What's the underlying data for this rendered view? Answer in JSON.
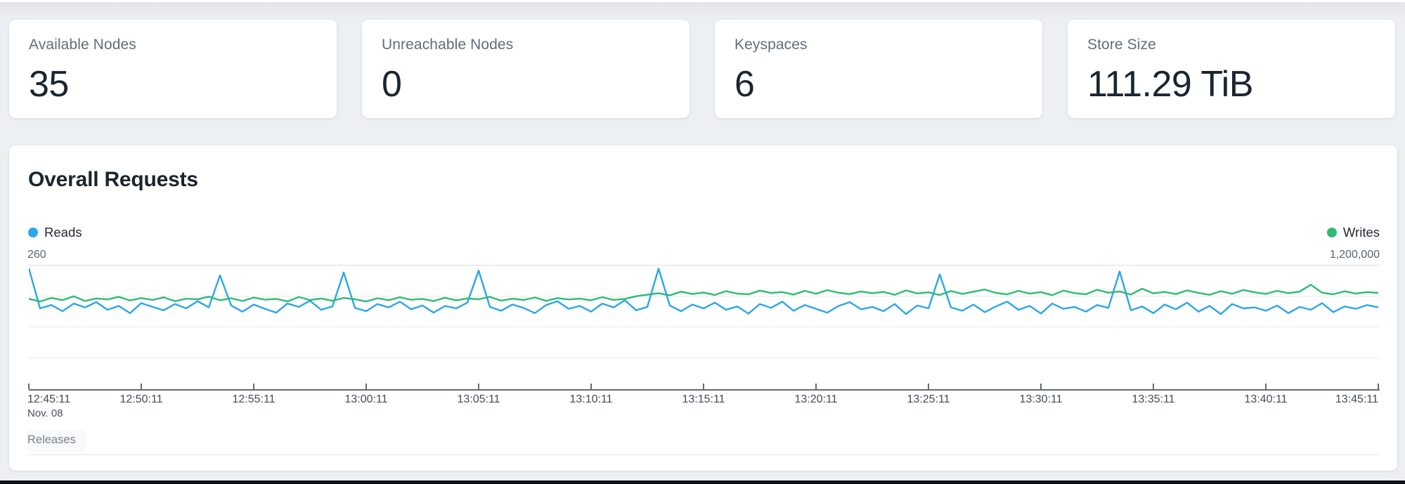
{
  "cards": [
    {
      "label": "Available Nodes",
      "value": "35"
    },
    {
      "label": "Unreachable Nodes",
      "value": "0"
    },
    {
      "label": "Keyspaces",
      "value": "6"
    },
    {
      "label": "Store Size",
      "value": "111.29 TiB"
    }
  ],
  "panel": {
    "title": "Overall Requests",
    "left_axis_top_label": "260",
    "right_axis_top_label": "1,200,000",
    "date_label": "Nov. 08",
    "releases_label": "Releases"
  },
  "chart_data": {
    "type": "line",
    "title": "Overall Requests",
    "grid": "horizontal-only",
    "x_ticks": [
      "12:45:11",
      "12:50:11",
      "12:55:11",
      "13:00:11",
      "13:05:11",
      "13:10:11",
      "13:15:11",
      "13:20:11",
      "13:25:11",
      "13:30:11",
      "13:35:11",
      "13:40:11",
      "13:45:11"
    ],
    "x_date": "Nov. 08",
    "left_ylim": [
      0,
      260
    ],
    "right_ylim": [
      0,
      1200000
    ],
    "legend_position": "top-left-and-top-right",
    "series": [
      {
        "name": "Reads",
        "axis": "left",
        "ymax": 260,
        "color": "#2BA6E9",
        "values": [
          253,
          169,
          176,
          163,
          179,
          171,
          182,
          166,
          174,
          159,
          180,
          172,
          165,
          178,
          169,
          184,
          171,
          238,
          175,
          162,
          177,
          168,
          160,
          179,
          172,
          185,
          166,
          173,
          244,
          170,
          163,
          178,
          171,
          183,
          167,
          175,
          160,
          174,
          169,
          181,
          248,
          172,
          164,
          177,
          170,
          159,
          176,
          184,
          168,
          174,
          162,
          179,
          171,
          186,
          165,
          172,
          252,
          175,
          163,
          177,
          169,
          181,
          166,
          173,
          158,
          178,
          170,
          183,
          164,
          176,
          168,
          160,
          174,
          182,
          167,
          172,
          163,
          178,
          157,
          175,
          169,
          240,
          171,
          164,
          177,
          161,
          173,
          183,
          166,
          174,
          158,
          179,
          168,
          172,
          162,
          176,
          170,
          246,
          165,
          173,
          159,
          177,
          167,
          181,
          162,
          174,
          157,
          178,
          169,
          171,
          164,
          175,
          159,
          172,
          166,
          180,
          161,
          173,
          168,
          176,
          171
        ]
      },
      {
        "name": "Writes",
        "axis": "right",
        "ymax": 1200000,
        "color": "#2EBC72",
        "values": [
          872000,
          846000,
          881000,
          860000,
          896000,
          851000,
          876000,
          866000,
          891000,
          856000,
          879000,
          862000,
          886000,
          849000,
          873000,
          867000,
          893000,
          858000,
          877000,
          851000,
          884000,
          864000,
          871000,
          847000,
          889000,
          861000,
          875000,
          853000,
          881000,
          868000,
          846000,
          878000,
          859000,
          887000,
          863000,
          872000,
          850000,
          883000,
          857000,
          876000,
          868000,
          891000,
          854000,
          873000,
          861000,
          885000,
          852000,
          879000,
          866000,
          874000,
          858000,
          888000,
          862000,
          871000,
          897000,
          912000,
          926000,
          906000,
          941000,
          918000,
          933000,
          909000,
          946000,
          922000,
          916000,
          951000,
          928000,
          937000,
          913000,
          949000,
          921000,
          956000,
          931000,
          917000,
          943000,
          926000,
          939000,
          911000,
          953000,
          924000,
          935000,
          909000,
          947000,
          919000,
          941000,
          962000,
          929000,
          915000,
          949000,
          923000,
          937000,
          907000,
          951000,
          927000,
          916000,
          959000,
          931000,
          943000,
          913000,
          970000,
          925000,
          939000,
          917000,
          953000,
          929000,
          911000,
          946000,
          921000,
          957000,
          935000,
          919000,
          949000,
          927000,
          941000,
          1008000,
          931000,
          916000,
          945000,
          923000,
          937000,
          929000
        ]
      }
    ]
  }
}
